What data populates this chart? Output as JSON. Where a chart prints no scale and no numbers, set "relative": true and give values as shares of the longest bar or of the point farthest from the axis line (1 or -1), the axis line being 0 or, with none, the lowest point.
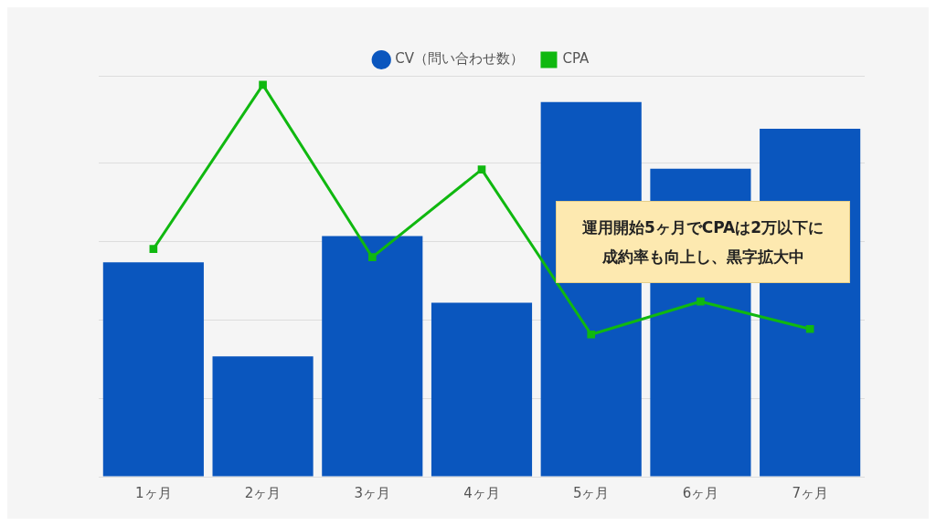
{
  "chart_data": {
    "type": "bar",
    "relative": true,
    "categories": [
      "1ヶ月",
      "2ヶ月",
      "3ヶ月",
      "4ヶ月",
      "5ヶ月",
      "6ヶ月",
      "7ヶ月"
    ],
    "series": [
      {
        "name": "CV（問い合わせ数）",
        "color": "#0a56be",
        "values": [
          0.547,
          0.307,
          0.614,
          0.444,
          0.956,
          0.786,
          0.888
        ]
      },
      {
        "name": "CPA",
        "type": "line",
        "color": "#10b810",
        "marker": "square",
        "values": [
          0.581,
          1,
          0.56,
          0.784,
          0.363,
          0.447,
          0.377
        ]
      }
    ],
    "grid": "y",
    "legend": "top",
    "annotations": [
      "運用開始5ヶ月でCPAは2万以下に成約率も向上し、黒字拡大中"
    ]
  }
}
